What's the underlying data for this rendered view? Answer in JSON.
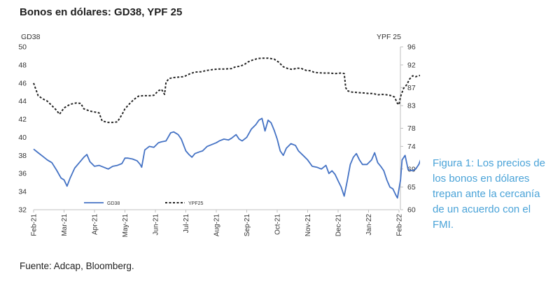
{
  "header": {
    "title": "Bonos en dólares: GD38, YPF 25"
  },
  "caption": {
    "text": "Figura 1: Los precios de los bonos en dólares trepan ante la cercanía de un acuerdo con el FMI."
  },
  "footer": {
    "source": "Fuente: Adcap, Bloomberg."
  },
  "chart_data": {
    "type": "line",
    "title": "Bonos en dólares: GD38, YPF 25",
    "x_tick_labels": [
      "Feb-21",
      "Mar-21",
      "Apr-21",
      "May-21",
      "Jun-21",
      "Jul-21",
      "Aug-21",
      "Sep-21",
      "Oct-21",
      "Nov-21",
      "Dec-21",
      "Jan-22",
      "Feb-22"
    ],
    "x_unit": "months since Feb-21",
    "left_axis": {
      "label": "GD38",
      "range": [
        32,
        50
      ],
      "ticks": [
        32,
        34,
        36,
        38,
        40,
        42,
        44,
        46,
        48,
        50
      ]
    },
    "right_axis": {
      "label": "YPF 25",
      "range": [
        60,
        96
      ],
      "ticks": [
        60,
        65,
        69,
        74,
        78,
        83,
        87,
        92,
        96
      ]
    },
    "legend": {
      "position": "bottom-left",
      "entries": [
        "GD38",
        "YPF25"
      ]
    },
    "series": [
      {
        "name": "GD38",
        "axis": "left",
        "color": "#4472c4",
        "style": "solid",
        "points": [
          [
            0,
            38.7
          ],
          [
            0.15,
            38.3
          ],
          [
            0.3,
            37.9
          ],
          [
            0.45,
            37.5
          ],
          [
            0.6,
            37.2
          ],
          [
            0.75,
            36.4
          ],
          [
            0.9,
            35.5
          ],
          [
            1.0,
            35.3
          ],
          [
            1.1,
            34.6
          ],
          [
            1.2,
            35.5
          ],
          [
            1.35,
            36.6
          ],
          [
            1.5,
            37.2
          ],
          [
            1.65,
            37.8
          ],
          [
            1.75,
            38.1
          ],
          [
            1.85,
            37.3
          ],
          [
            2.0,
            36.8
          ],
          [
            2.15,
            36.9
          ],
          [
            2.3,
            36.7
          ],
          [
            2.45,
            36.5
          ],
          [
            2.6,
            36.8
          ],
          [
            2.75,
            36.9
          ],
          [
            2.9,
            37.1
          ],
          [
            3.0,
            37.7
          ],
          [
            3.1,
            37.7
          ],
          [
            3.25,
            37.6
          ],
          [
            3.4,
            37.4
          ],
          [
            3.5,
            37.0
          ],
          [
            3.55,
            36.7
          ],
          [
            3.65,
            38.6
          ],
          [
            3.8,
            39.0
          ],
          [
            3.95,
            38.9
          ],
          [
            4.1,
            39.4
          ],
          [
            4.2,
            39.5
          ],
          [
            4.35,
            39.6
          ],
          [
            4.5,
            40.5
          ],
          [
            4.6,
            40.6
          ],
          [
            4.75,
            40.3
          ],
          [
            4.85,
            39.8
          ],
          [
            5.0,
            38.5
          ],
          [
            5.1,
            38.1
          ],
          [
            5.2,
            37.8
          ],
          [
            5.3,
            38.2
          ],
          [
            5.45,
            38.4
          ],
          [
            5.55,
            38.5
          ],
          [
            5.7,
            39.0
          ],
          [
            5.85,
            39.2
          ],
          [
            6.0,
            39.4
          ],
          [
            6.1,
            39.6
          ],
          [
            6.25,
            39.8
          ],
          [
            6.4,
            39.7
          ],
          [
            6.5,
            39.9
          ],
          [
            6.65,
            40.3
          ],
          [
            6.75,
            39.8
          ],
          [
            6.85,
            39.6
          ],
          [
            7.0,
            40.0
          ],
          [
            7.15,
            40.9
          ],
          [
            7.3,
            41.4
          ],
          [
            7.4,
            41.9
          ],
          [
            7.5,
            42.1
          ],
          [
            7.6,
            40.7
          ],
          [
            7.7,
            41.9
          ],
          [
            7.8,
            41.6
          ],
          [
            7.9,
            40.8
          ],
          [
            8.0,
            39.8
          ],
          [
            8.1,
            38.5
          ],
          [
            8.2,
            38.0
          ],
          [
            8.3,
            38.8
          ],
          [
            8.45,
            39.3
          ],
          [
            8.6,
            39.1
          ],
          [
            8.7,
            38.5
          ],
          [
            8.85,
            38.0
          ],
          [
            9.0,
            37.5
          ],
          [
            9.15,
            36.8
          ],
          [
            9.3,
            36.7
          ],
          [
            9.45,
            36.5
          ],
          [
            9.6,
            36.9
          ],
          [
            9.7,
            36.0
          ],
          [
            9.8,
            36.3
          ],
          [
            9.9,
            35.9
          ],
          [
            10.0,
            35.2
          ],
          [
            10.1,
            34.5
          ],
          [
            10.2,
            33.5
          ],
          [
            10.3,
            35.2
          ],
          [
            10.4,
            37.0
          ],
          [
            10.5,
            37.8
          ],
          [
            10.6,
            38.2
          ],
          [
            10.7,
            37.5
          ],
          [
            10.8,
            37.0
          ],
          [
            10.95,
            37.0
          ],
          [
            11.1,
            37.5
          ],
          [
            11.2,
            38.3
          ],
          [
            11.3,
            37.2
          ],
          [
            11.4,
            36.8
          ],
          [
            11.5,
            36.3
          ],
          [
            11.6,
            35.3
          ],
          [
            11.7,
            34.5
          ],
          [
            11.8,
            34.3
          ],
          [
            11.9,
            33.6
          ],
          [
            11.95,
            33.3
          ],
          [
            12.05,
            35.3
          ],
          [
            12.1,
            37.5
          ],
          [
            12.2,
            38.0
          ],
          [
            12.3,
            36.4
          ],
          [
            12.45,
            36.3
          ],
          [
            12.55,
            36.5
          ],
          [
            12.65,
            37.0
          ],
          [
            12.75,
            37.9
          ],
          [
            12.85,
            38.3
          ]
        ]
      },
      {
        "name": "YPF25",
        "axis": "right",
        "color": "#222222",
        "style": "dashed",
        "points": [
          [
            0,
            88.0
          ],
          [
            0.15,
            85.2
          ],
          [
            0.3,
            84.5
          ],
          [
            0.45,
            84.0
          ],
          [
            0.6,
            83.0
          ],
          [
            0.75,
            82.0
          ],
          [
            0.85,
            81.1
          ],
          [
            1.0,
            82.5
          ],
          [
            1.2,
            83.3
          ],
          [
            1.4,
            83.6
          ],
          [
            1.55,
            83.5
          ],
          [
            1.65,
            82.3
          ],
          [
            1.85,
            81.8
          ],
          [
            2.0,
            81.6
          ],
          [
            2.15,
            81.4
          ],
          [
            2.25,
            79.6
          ],
          [
            2.45,
            79.3
          ],
          [
            2.6,
            79.3
          ],
          [
            2.75,
            79.4
          ],
          [
            2.9,
            81.0
          ],
          [
            3.0,
            82.3
          ],
          [
            3.15,
            83.4
          ],
          [
            3.3,
            84.4
          ],
          [
            3.45,
            85.1
          ],
          [
            3.6,
            85.2
          ],
          [
            3.8,
            85.2
          ],
          [
            3.95,
            85.3
          ],
          [
            4.1,
            86.3
          ],
          [
            4.2,
            86.6
          ],
          [
            4.3,
            85.5
          ],
          [
            4.35,
            88.2
          ],
          [
            4.45,
            89.0
          ],
          [
            4.6,
            89.2
          ],
          [
            4.75,
            89.3
          ],
          [
            4.9,
            89.4
          ],
          [
            5.0,
            89.6
          ],
          [
            5.15,
            90.1
          ],
          [
            5.3,
            90.4
          ],
          [
            5.5,
            90.5
          ],
          [
            5.7,
            90.8
          ],
          [
            5.9,
            91.0
          ],
          [
            6.1,
            91.1
          ],
          [
            6.3,
            91.1
          ],
          [
            6.5,
            91.2
          ],
          [
            6.6,
            91.5
          ],
          [
            6.75,
            91.7
          ],
          [
            6.9,
            92.0
          ],
          [
            7.05,
            92.7
          ],
          [
            7.2,
            93.1
          ],
          [
            7.35,
            93.4
          ],
          [
            7.5,
            93.5
          ],
          [
            7.7,
            93.5
          ],
          [
            7.9,
            93.3
          ],
          [
            8.05,
            92.6
          ],
          [
            8.2,
            91.6
          ],
          [
            8.35,
            91.2
          ],
          [
            8.5,
            91.0
          ],
          [
            8.65,
            91.3
          ],
          [
            8.8,
            91.2
          ],
          [
            8.95,
            90.8
          ],
          [
            9.1,
            90.7
          ],
          [
            9.2,
            90.4
          ],
          [
            9.3,
            90.3
          ],
          [
            9.5,
            90.2
          ],
          [
            9.7,
            90.2
          ],
          [
            9.9,
            90.1
          ],
          [
            10.1,
            90.2
          ],
          [
            10.2,
            90.1
          ],
          [
            10.25,
            87.0
          ],
          [
            10.3,
            86.3
          ],
          [
            10.45,
            86.0
          ],
          [
            10.65,
            85.9
          ],
          [
            10.85,
            85.8
          ],
          [
            11.0,
            85.7
          ],
          [
            11.15,
            85.7
          ],
          [
            11.3,
            85.4
          ],
          [
            11.45,
            85.5
          ],
          [
            11.6,
            85.4
          ],
          [
            11.75,
            85.2
          ],
          [
            11.85,
            84.9
          ],
          [
            11.95,
            83.5
          ],
          [
            12.0,
            83.2
          ],
          [
            12.05,
            85.0
          ],
          [
            12.15,
            86.8
          ],
          [
            12.25,
            87.6
          ],
          [
            12.35,
            88.9
          ],
          [
            12.45,
            89.6
          ],
          [
            12.55,
            89.4
          ],
          [
            12.7,
            89.7
          ],
          [
            12.8,
            90.0
          ]
        ]
      }
    ]
  }
}
